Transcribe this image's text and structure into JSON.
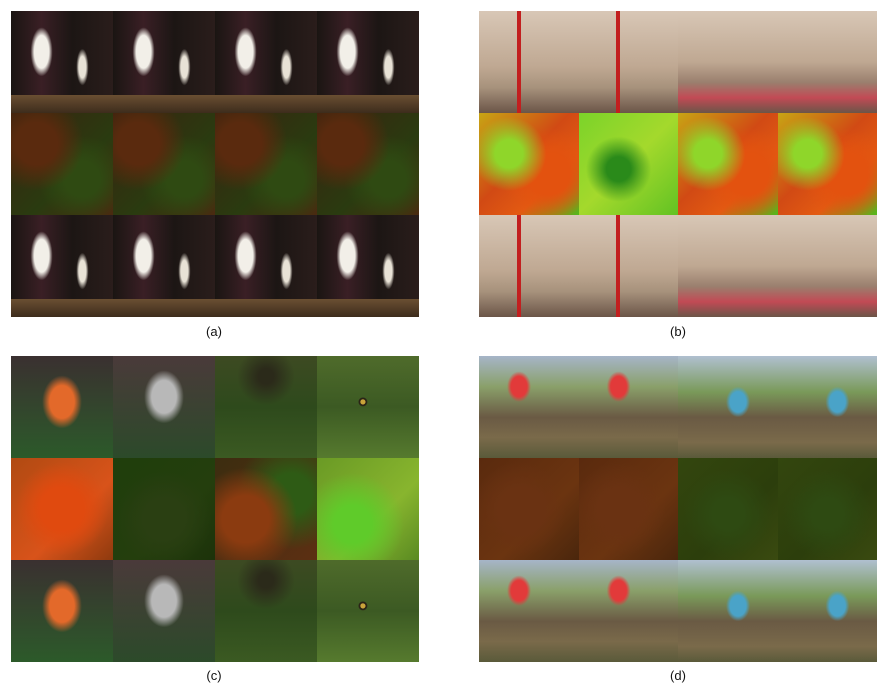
{
  "figure": {
    "panels": [
      {
        "caption": "(a)",
        "rows": [
          "input-frames",
          "flow-maps",
          "warped-frames"
        ]
      },
      {
        "caption": "(b)",
        "rows": [
          "input-frames",
          "flow-maps",
          "warped-frames"
        ]
      },
      {
        "caption": "(c)",
        "rows": [
          "input-frames",
          "flow-maps",
          "warped-frames"
        ]
      },
      {
        "caption": "(d)",
        "rows": [
          "input-frames",
          "flow-maps",
          "warped-frames"
        ]
      }
    ]
  }
}
